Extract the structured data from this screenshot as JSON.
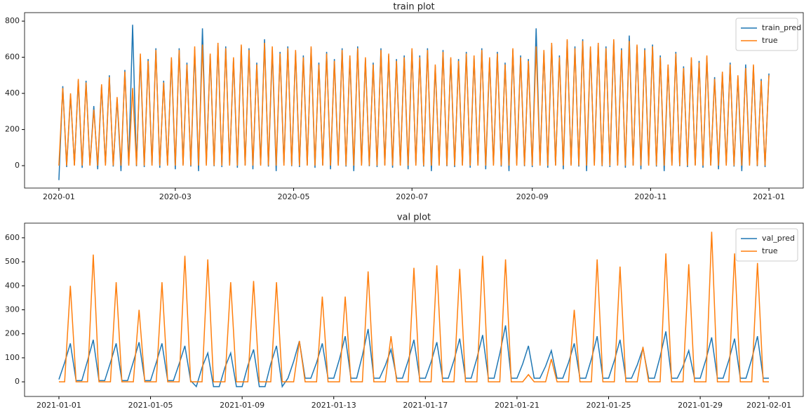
{
  "chart_data": [
    {
      "type": "line",
      "title": "train plot",
      "x": [
        0,
        2,
        4,
        6,
        8,
        10,
        12,
        14,
        16,
        18,
        20,
        22,
        24,
        26,
        28,
        30,
        32,
        34,
        36,
        38,
        40,
        42,
        44,
        46,
        48,
        50,
        52,
        54,
        56,
        58,
        60,
        62,
        64,
        66,
        68,
        70,
        72,
        74,
        76,
        78,
        80,
        82,
        84,
        86,
        88,
        90,
        92,
        94,
        96,
        98,
        100,
        102,
        104,
        106,
        108,
        110,
        112,
        114,
        116,
        118,
        120,
        122,
        124,
        126,
        128,
        130,
        132,
        134,
        136,
        138,
        140,
        142,
        144,
        146,
        148,
        150,
        152,
        154,
        156,
        158,
        160,
        162,
        164,
        166,
        168,
        170,
        172,
        174,
        176,
        178,
        180,
        182,
        184,
        186,
        188,
        190,
        192,
        194,
        196,
        198,
        200,
        202,
        204,
        206,
        208,
        210,
        212,
        214,
        216,
        218,
        220,
        222,
        224,
        226,
        228,
        230,
        232,
        234,
        236,
        238,
        240,
        242,
        244,
        246,
        248,
        250,
        252,
        254,
        256,
        258,
        260,
        262,
        264,
        266,
        268,
        270,
        272,
        274,
        276,
        278,
        280,
        282,
        284,
        286,
        288,
        290,
        292,
        294,
        296,
        298,
        300,
        302,
        304,
        306,
        308,
        310,
        312,
        314,
        316,
        318,
        320,
        322,
        324,
        326,
        328,
        330,
        332,
        334,
        336,
        338,
        340,
        342,
        344,
        346,
        348,
        350,
        352,
        354,
        356,
        358,
        360,
        362,
        364,
        366
      ],
      "series": [
        {
          "name": "train_pred",
          "color": "#1f77b4",
          "values": [
            -80,
            440,
            -8,
            390,
            5,
            470,
            -12,
            470,
            3,
            330,
            -20,
            440,
            8,
            500,
            -5,
            370,
            -30,
            530,
            10,
            780,
            -3,
            600,
            -8,
            590,
            5,
            650,
            -12,
            470,
            3,
            590,
            -20,
            650,
            8,
            570,
            -5,
            640,
            -30,
            760,
            10,
            610,
            -3,
            670,
            -8,
            660,
            5,
            590,
            -12,
            660,
            3,
            650,
            -20,
            570,
            8,
            700,
            -5,
            640,
            -30,
            630,
            10,
            660,
            -3,
            630,
            -8,
            610,
            5,
            650,
            -12,
            570,
            3,
            630,
            -20,
            590,
            8,
            650,
            -5,
            600,
            -30,
            660,
            10,
            590,
            -3,
            570,
            -8,
            650,
            5,
            610,
            -12,
            590,
            3,
            610,
            -20,
            640,
            8,
            610,
            -5,
            650,
            -30,
            550,
            10,
            640,
            -3,
            590,
            -8,
            590,
            5,
            630,
            -12,
            600,
            3,
            650,
            -20,
            590,
            8,
            630,
            -5,
            570,
            -30,
            640,
            10,
            610,
            -3,
            590,
            -8,
            760,
            5,
            630,
            -12,
            670,
            3,
            610,
            -20,
            690,
            8,
            660,
            -5,
            700,
            -30,
            650,
            10,
            670,
            -3,
            660,
            -8,
            690,
            5,
            650,
            -12,
            720,
            3,
            660,
            -20,
            650,
            8,
            670,
            -5,
            610,
            -30,
            550,
            10,
            630,
            -3,
            550,
            -8,
            590,
            5,
            580,
            -12,
            600,
            3,
            490,
            -20,
            510,
            8,
            570,
            -5,
            490,
            -30,
            560,
            10,
            550,
            -3,
            480,
            -8,
            510
          ]
        },
        {
          "name": "true",
          "color": "#ff7f0e",
          "values": [
            0,
            430,
            0,
            400,
            0,
            480,
            0,
            460,
            0,
            310,
            0,
            450,
            0,
            490,
            0,
            380,
            0,
            520,
            0,
            430,
            0,
            620,
            0,
            580,
            0,
            640,
            0,
            460,
            0,
            600,
            0,
            640,
            0,
            560,
            0,
            660,
            0,
            670,
            0,
            620,
            0,
            680,
            0,
            650,
            0,
            600,
            0,
            670,
            0,
            640,
            0,
            560,
            0,
            680,
            0,
            660,
            0,
            620,
            0,
            650,
            0,
            640,
            0,
            600,
            0,
            660,
            0,
            560,
            0,
            620,
            0,
            580,
            0,
            640,
            0,
            610,
            0,
            650,
            0,
            600,
            0,
            560,
            0,
            640,
            0,
            620,
            0,
            580,
            0,
            600,
            0,
            650,
            0,
            600,
            0,
            640,
            0,
            560,
            0,
            630,
            0,
            600,
            0,
            580,
            0,
            620,
            0,
            610,
            0,
            640,
            0,
            600,
            0,
            620,
            0,
            560,
            0,
            650,
            0,
            600,
            0,
            580,
            0,
            660,
            0,
            640,
            0,
            680,
            0,
            600,
            0,
            700,
            0,
            650,
            0,
            690,
            0,
            660,
            0,
            680,
            0,
            650,
            0,
            700,
            0,
            640,
            0,
            690,
            0,
            670,
            0,
            640,
            0,
            660,
            0,
            600,
            0,
            560,
            0,
            620,
            0,
            540,
            0,
            600,
            0,
            570,
            0,
            610,
            0,
            480,
            0,
            520,
            0,
            560,
            0,
            500,
            0,
            540,
            0,
            560,
            0,
            470,
            0,
            500
          ]
        }
      ],
      "xlim": [
        -17.7,
        383.7
      ],
      "xticks": [
        {
          "value": 0,
          "label": "2020-01"
        },
        {
          "value": 60,
          "label": "2020-03"
        },
        {
          "value": 121,
          "label": "2020-05"
        },
        {
          "value": 182,
          "label": "2020-07"
        },
        {
          "value": 244,
          "label": "2020-09"
        },
        {
          "value": 305,
          "label": "2020-11"
        },
        {
          "value": 366,
          "label": "2021-01"
        }
      ],
      "ylim": [
        -124,
        847
      ],
      "yticks": [
        0,
        200,
        400,
        600,
        800
      ],
      "legend": "upper right"
    },
    {
      "type": "line",
      "title": "val plot",
      "x": [
        0,
        0.25,
        0.5,
        0.75,
        1,
        1.25,
        1.5,
        1.75,
        2,
        2.25,
        2.5,
        2.75,
        3,
        3.25,
        3.5,
        3.75,
        4,
        4.25,
        4.5,
        4.75,
        5,
        5.25,
        5.5,
        5.75,
        6,
        6.25,
        6.5,
        6.75,
        7,
        7.25,
        7.5,
        7.75,
        8,
        8.25,
        8.5,
        8.75,
        9,
        9.25,
        9.5,
        9.75,
        10,
        10.25,
        10.5,
        10.75,
        11,
        11.25,
        11.5,
        11.75,
        12,
        12.25,
        12.5,
        12.75,
        13,
        13.25,
        13.5,
        13.75,
        14,
        14.25,
        14.5,
        14.75,
        15,
        15.25,
        15.5,
        15.75,
        16,
        16.25,
        16.5,
        16.75,
        17,
        17.25,
        17.5,
        17.75,
        18,
        18.25,
        18.5,
        18.75,
        19,
        19.25,
        19.5,
        19.75,
        20,
        20.25,
        20.5,
        20.75,
        21,
        21.25,
        21.5,
        21.75,
        22,
        22.25,
        22.5,
        22.75,
        23,
        23.25,
        23.5,
        23.75,
        24,
        24.25,
        24.5,
        24.75,
        25,
        25.25,
        25.5,
        25.75,
        26,
        26.25,
        26.5,
        26.75,
        27,
        27.25,
        27.5,
        27.75,
        28,
        28.25,
        28.5,
        28.75,
        29,
        29.25,
        29.5,
        29.75,
        30,
        30.25,
        30.5,
        30.75,
        31
      ],
      "series": [
        {
          "name": "val_pred",
          "color": "#1f77b4",
          "values": [
            10,
            80,
            160,
            5,
            5,
            88,
            175,
            5,
            5,
            80,
            160,
            5,
            5,
            83,
            165,
            5,
            5,
            80,
            160,
            5,
            5,
            75,
            150,
            5,
            -20,
            60,
            120,
            -20,
            -20,
            60,
            120,
            -20,
            -20,
            68,
            135,
            -20,
            -20,
            75,
            150,
            -20,
            15,
            85,
            170,
            15,
            15,
            80,
            160,
            15,
            15,
            95,
            190,
            15,
            15,
            110,
            220,
            15,
            15,
            68,
            135,
            15,
            15,
            88,
            175,
            15,
            15,
            83,
            165,
            15,
            15,
            90,
            180,
            15,
            15,
            98,
            195,
            15,
            15,
            118,
            235,
            15,
            15,
            75,
            150,
            15,
            15,
            65,
            130,
            15,
            15,
            80,
            160,
            15,
            15,
            95,
            190,
            15,
            15,
            88,
            175,
            15,
            15,
            70,
            140,
            15,
            15,
            105,
            210,
            15,
            15,
            65,
            130,
            15,
            15,
            93,
            185,
            15,
            15,
            90,
            180,
            15,
            15,
            95,
            190,
            15,
            15
          ]
        },
        {
          "name": "true",
          "color": "#ff7f0e",
          "values": [
            0,
            0,
            400,
            0,
            0,
            0,
            530,
            0,
            0,
            0,
            415,
            0,
            0,
            0,
            300,
            0,
            0,
            0,
            415,
            0,
            0,
            0,
            525,
            0,
            0,
            0,
            510,
            0,
            0,
            0,
            415,
            0,
            0,
            0,
            420,
            0,
            0,
            0,
            415,
            0,
            0,
            0,
            170,
            0,
            0,
            0,
            355,
            0,
            0,
            0,
            355,
            0,
            0,
            0,
            460,
            0,
            0,
            0,
            190,
            0,
            0,
            0,
            475,
            0,
            0,
            0,
            485,
            0,
            0,
            0,
            470,
            0,
            0,
            0,
            525,
            0,
            0,
            0,
            510,
            0,
            0,
            0,
            30,
            0,
            0,
            0,
            95,
            0,
            0,
            0,
            300,
            0,
            0,
            0,
            510,
            0,
            0,
            0,
            480,
            0,
            0,
            0,
            145,
            0,
            0,
            0,
            535,
            0,
            0,
            0,
            490,
            0,
            0,
            0,
            625,
            0,
            0,
            0,
            535,
            0,
            0,
            0,
            495,
            0,
            0
          ]
        }
      ],
      "xlim": [
        -1.5,
        32.5
      ],
      "xticks": [
        {
          "value": 0,
          "label": "2021-01-01"
        },
        {
          "value": 4,
          "label": "2021-01-05"
        },
        {
          "value": 8,
          "label": "2021-01-09"
        },
        {
          "value": 12,
          "label": "2021-01-13"
        },
        {
          "value": 16,
          "label": "2021-01-17"
        },
        {
          "value": 20,
          "label": "2021-01-21"
        },
        {
          "value": 24,
          "label": "2021-01-25"
        },
        {
          "value": 28,
          "label": "2021-01-29"
        },
        {
          "value": 31,
          "label": "2021-02-01"
        }
      ],
      "ylim": [
        -61,
        661
      ],
      "yticks": [
        0,
        100,
        200,
        300,
        400,
        500,
        600
      ],
      "legend": "upper right"
    }
  ]
}
